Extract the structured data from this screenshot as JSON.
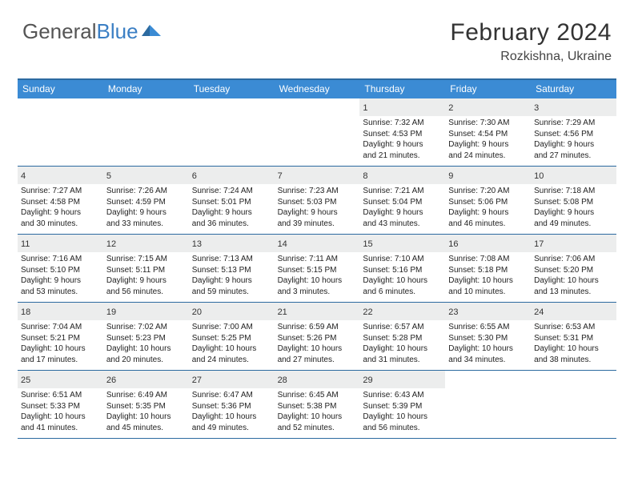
{
  "brand": {
    "part1": "General",
    "part2": "Blue"
  },
  "title": "February 2024",
  "location": "Rozkishna, Ukraine",
  "colors": {
    "header_bg": "#3b8bd4",
    "border": "#2c6aa0",
    "daynum_bg": "#eceded",
    "text": "#222222",
    "brand_gray": "#555555",
    "brand_blue": "#3b7fc4"
  },
  "day_labels": [
    "Sunday",
    "Monday",
    "Tuesday",
    "Wednesday",
    "Thursday",
    "Friday",
    "Saturday"
  ],
  "weeks": [
    [
      null,
      null,
      null,
      null,
      {
        "n": "1",
        "sr": "Sunrise: 7:32 AM",
        "ss": "Sunset: 4:53 PM",
        "d1": "Daylight: 9 hours",
        "d2": "and 21 minutes."
      },
      {
        "n": "2",
        "sr": "Sunrise: 7:30 AM",
        "ss": "Sunset: 4:54 PM",
        "d1": "Daylight: 9 hours",
        "d2": "and 24 minutes."
      },
      {
        "n": "3",
        "sr": "Sunrise: 7:29 AM",
        "ss": "Sunset: 4:56 PM",
        "d1": "Daylight: 9 hours",
        "d2": "and 27 minutes."
      }
    ],
    [
      {
        "n": "4",
        "sr": "Sunrise: 7:27 AM",
        "ss": "Sunset: 4:58 PM",
        "d1": "Daylight: 9 hours",
        "d2": "and 30 minutes."
      },
      {
        "n": "5",
        "sr": "Sunrise: 7:26 AM",
        "ss": "Sunset: 4:59 PM",
        "d1": "Daylight: 9 hours",
        "d2": "and 33 minutes."
      },
      {
        "n": "6",
        "sr": "Sunrise: 7:24 AM",
        "ss": "Sunset: 5:01 PM",
        "d1": "Daylight: 9 hours",
        "d2": "and 36 minutes."
      },
      {
        "n": "7",
        "sr": "Sunrise: 7:23 AM",
        "ss": "Sunset: 5:03 PM",
        "d1": "Daylight: 9 hours",
        "d2": "and 39 minutes."
      },
      {
        "n": "8",
        "sr": "Sunrise: 7:21 AM",
        "ss": "Sunset: 5:04 PM",
        "d1": "Daylight: 9 hours",
        "d2": "and 43 minutes."
      },
      {
        "n": "9",
        "sr": "Sunrise: 7:20 AM",
        "ss": "Sunset: 5:06 PM",
        "d1": "Daylight: 9 hours",
        "d2": "and 46 minutes."
      },
      {
        "n": "10",
        "sr": "Sunrise: 7:18 AM",
        "ss": "Sunset: 5:08 PM",
        "d1": "Daylight: 9 hours",
        "d2": "and 49 minutes."
      }
    ],
    [
      {
        "n": "11",
        "sr": "Sunrise: 7:16 AM",
        "ss": "Sunset: 5:10 PM",
        "d1": "Daylight: 9 hours",
        "d2": "and 53 minutes."
      },
      {
        "n": "12",
        "sr": "Sunrise: 7:15 AM",
        "ss": "Sunset: 5:11 PM",
        "d1": "Daylight: 9 hours",
        "d2": "and 56 minutes."
      },
      {
        "n": "13",
        "sr": "Sunrise: 7:13 AM",
        "ss": "Sunset: 5:13 PM",
        "d1": "Daylight: 9 hours",
        "d2": "and 59 minutes."
      },
      {
        "n": "14",
        "sr": "Sunrise: 7:11 AM",
        "ss": "Sunset: 5:15 PM",
        "d1": "Daylight: 10 hours",
        "d2": "and 3 minutes."
      },
      {
        "n": "15",
        "sr": "Sunrise: 7:10 AM",
        "ss": "Sunset: 5:16 PM",
        "d1": "Daylight: 10 hours",
        "d2": "and 6 minutes."
      },
      {
        "n": "16",
        "sr": "Sunrise: 7:08 AM",
        "ss": "Sunset: 5:18 PM",
        "d1": "Daylight: 10 hours",
        "d2": "and 10 minutes."
      },
      {
        "n": "17",
        "sr": "Sunrise: 7:06 AM",
        "ss": "Sunset: 5:20 PM",
        "d1": "Daylight: 10 hours",
        "d2": "and 13 minutes."
      }
    ],
    [
      {
        "n": "18",
        "sr": "Sunrise: 7:04 AM",
        "ss": "Sunset: 5:21 PM",
        "d1": "Daylight: 10 hours",
        "d2": "and 17 minutes."
      },
      {
        "n": "19",
        "sr": "Sunrise: 7:02 AM",
        "ss": "Sunset: 5:23 PM",
        "d1": "Daylight: 10 hours",
        "d2": "and 20 minutes."
      },
      {
        "n": "20",
        "sr": "Sunrise: 7:00 AM",
        "ss": "Sunset: 5:25 PM",
        "d1": "Daylight: 10 hours",
        "d2": "and 24 minutes."
      },
      {
        "n": "21",
        "sr": "Sunrise: 6:59 AM",
        "ss": "Sunset: 5:26 PM",
        "d1": "Daylight: 10 hours",
        "d2": "and 27 minutes."
      },
      {
        "n": "22",
        "sr": "Sunrise: 6:57 AM",
        "ss": "Sunset: 5:28 PM",
        "d1": "Daylight: 10 hours",
        "d2": "and 31 minutes."
      },
      {
        "n": "23",
        "sr": "Sunrise: 6:55 AM",
        "ss": "Sunset: 5:30 PM",
        "d1": "Daylight: 10 hours",
        "d2": "and 34 minutes."
      },
      {
        "n": "24",
        "sr": "Sunrise: 6:53 AM",
        "ss": "Sunset: 5:31 PM",
        "d1": "Daylight: 10 hours",
        "d2": "and 38 minutes."
      }
    ],
    [
      {
        "n": "25",
        "sr": "Sunrise: 6:51 AM",
        "ss": "Sunset: 5:33 PM",
        "d1": "Daylight: 10 hours",
        "d2": "and 41 minutes."
      },
      {
        "n": "26",
        "sr": "Sunrise: 6:49 AM",
        "ss": "Sunset: 5:35 PM",
        "d1": "Daylight: 10 hours",
        "d2": "and 45 minutes."
      },
      {
        "n": "27",
        "sr": "Sunrise: 6:47 AM",
        "ss": "Sunset: 5:36 PM",
        "d1": "Daylight: 10 hours",
        "d2": "and 49 minutes."
      },
      {
        "n": "28",
        "sr": "Sunrise: 6:45 AM",
        "ss": "Sunset: 5:38 PM",
        "d1": "Daylight: 10 hours",
        "d2": "and 52 minutes."
      },
      {
        "n": "29",
        "sr": "Sunrise: 6:43 AM",
        "ss": "Sunset: 5:39 PM",
        "d1": "Daylight: 10 hours",
        "d2": "and 56 minutes."
      },
      null,
      null
    ]
  ]
}
